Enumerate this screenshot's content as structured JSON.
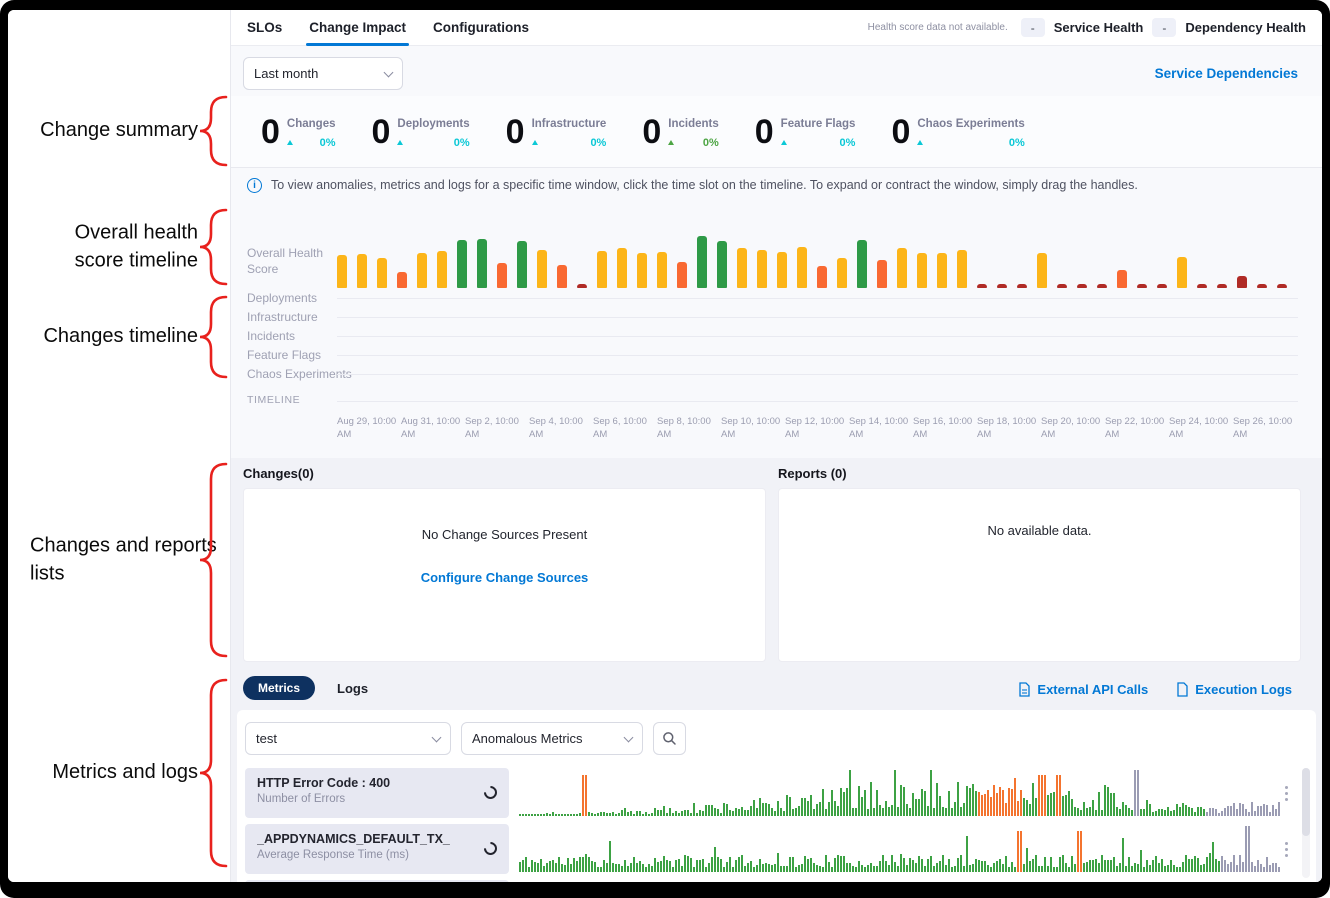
{
  "colors": {
    "accent_blue": "#0278d5",
    "cyan_delta": "#0bc8d6",
    "green_delta": "#4da544",
    "pill_navy": "#0e3160",
    "annotation_red": "#e8211d",
    "bar_yellow": "#fcb519",
    "bar_orange": "#f96932",
    "bar_green": "#2e9a47",
    "bar_red": "#b02b26",
    "spark_green": "#3da244",
    "spark_orange": "#f4742f",
    "spark_gray": "#9b9cb3"
  },
  "annotations": {
    "items": [
      {
        "lines": [
          "Change summary"
        ],
        "align": "right"
      },
      {
        "lines": [
          "Overall health",
          "score timeline"
        ],
        "align": "right"
      },
      {
        "lines": [
          "Changes timeline"
        ],
        "align": "right"
      },
      {
        "lines": [
          "Changes and reports",
          "lists"
        ],
        "align": "left"
      },
      {
        "lines": [
          "Metrics and logs"
        ],
        "align": "right"
      }
    ]
  },
  "tabs": {
    "items": [
      {
        "label": "SLOs",
        "active": false
      },
      {
        "label": "Change Impact",
        "active": true
      },
      {
        "label": "Configurations",
        "active": false
      }
    ]
  },
  "health_status": {
    "note": "Health score data not available.",
    "service": {
      "value": "-",
      "label": "Service Health"
    },
    "dependency": {
      "value": "-",
      "label": "Dependency Health"
    }
  },
  "toolbar": {
    "time_range_value": "Last month",
    "service_dependencies": "Service Dependencies"
  },
  "change_summary": {
    "items": [
      {
        "count": "0",
        "label": "Changes",
        "pct": "0%",
        "color": "#0bc8d6"
      },
      {
        "count": "0",
        "label": "Deployments",
        "pct": "0%",
        "color": "#0bc8d6"
      },
      {
        "count": "0",
        "label": "Infrastructure",
        "pct": "0%",
        "color": "#0bc8d6"
      },
      {
        "count": "0",
        "label": "Incidents",
        "pct": "0%",
        "color": "#4da544"
      },
      {
        "count": "0",
        "label": "Feature Flags",
        "pct": "0%",
        "color": "#0bc8d6"
      },
      {
        "count": "0",
        "label": "Chaos Experiments",
        "pct": "0%",
        "color": "#0bc8d6"
      }
    ]
  },
  "info_banner": {
    "text": "To view anomalies, metrics and logs for a specific time window, click the time slot on the timeline. To expand or contract the window, simply drag the handles."
  },
  "timeline_section": {
    "overall_label_lines": [
      "Overall Health",
      "Score"
    ],
    "category_rows": [
      "Deployments",
      "Infrastructure",
      "Incidents",
      "Feature Flags",
      "Chaos Experiments"
    ],
    "timeline_label": "TIMELINE",
    "dates": [
      {
        "date": "Aug 29, 10:00",
        "suffix": "AM"
      },
      {
        "date": "Aug 31, 10:00",
        "suffix": "AM"
      },
      {
        "date": "Sep 2, 10:00",
        "suffix": "AM"
      },
      {
        "date": "Sep 4, 10:00",
        "suffix": "AM"
      },
      {
        "date": "Sep 6, 10:00",
        "suffix": "AM"
      },
      {
        "date": "Sep 8, 10:00",
        "suffix": "AM"
      },
      {
        "date": "Sep 10, 10:00",
        "suffix": "AM"
      },
      {
        "date": "Sep 12, 10:00",
        "suffix": "AM"
      },
      {
        "date": "Sep 14, 10:00",
        "suffix": "AM"
      },
      {
        "date": "Sep 16, 10:00",
        "suffix": "AM"
      },
      {
        "date": "Sep 18, 10:00",
        "suffix": "AM"
      },
      {
        "date": "Sep 20, 10:00",
        "suffix": "AM"
      },
      {
        "date": "Sep 22, 10:00",
        "suffix": "AM"
      },
      {
        "date": "Sep 24, 10:00",
        "suffix": "AM"
      },
      {
        "date": "Sep 26, 10:00",
        "suffix": "AM"
      }
    ]
  },
  "changes_panel": {
    "title": "Changes(0)",
    "empty_text": "No Change Sources Present",
    "link": "Configure Change Sources"
  },
  "reports_panel": {
    "title": "Reports (0)",
    "empty_text": "No available data."
  },
  "metrics_section": {
    "tabs": [
      {
        "label": "Metrics",
        "active": true
      },
      {
        "label": "Logs",
        "active": false
      }
    ],
    "links": [
      {
        "label": "External API Calls"
      },
      {
        "label": "Execution Logs"
      }
    ],
    "filters": {
      "service_value": "test",
      "metric_filter_value": "Anomalous Metrics"
    },
    "rows": [
      {
        "title": "HTTP Error Code : 400",
        "subtitle": "Number of Errors"
      },
      {
        "title": "_APPDYNAMICS_DEFAULT_TX_",
        "subtitle": "Average Response Time (ms)"
      }
    ]
  },
  "chart_data": [
    {
      "id": "overall_health_score_timeline",
      "type": "bar",
      "title": "Overall Health Score",
      "ylim": [
        0,
        100
      ],
      "x_range": [
        "Aug 29, 10:00 AM",
        "Sep 26, 10:00 AM"
      ],
      "palette": {
        "y": "#fcb519",
        "o": "#f96932",
        "g": "#2e9a47",
        "r": "#b02b26"
      },
      "bars": [
        [
          "y",
          55
        ],
        [
          "y",
          57
        ],
        [
          "y",
          50
        ],
        [
          "o",
          26
        ],
        [
          "y",
          58
        ],
        [
          "y",
          62
        ],
        [
          "g",
          80
        ],
        [
          "g",
          82
        ],
        [
          "o",
          42
        ],
        [
          "g",
          78
        ],
        [
          "y",
          64
        ],
        [
          "o",
          38
        ],
        [
          "r",
          6
        ],
        [
          "y",
          62
        ],
        [
          "y",
          66
        ],
        [
          "y",
          58
        ],
        [
          "y",
          60
        ],
        [
          "o",
          44
        ],
        [
          "g",
          86
        ],
        [
          "g",
          79
        ],
        [
          "y",
          66
        ],
        [
          "y",
          64
        ],
        [
          "y",
          60
        ],
        [
          "y",
          68
        ],
        [
          "o",
          36
        ],
        [
          "y",
          50
        ],
        [
          "g",
          80
        ],
        [
          "o",
          46
        ],
        [
          "y",
          66
        ],
        [
          "y",
          58
        ],
        [
          "y",
          58
        ],
        [
          "y",
          64
        ],
        [
          "r",
          6
        ],
        [
          "r",
          6
        ],
        [
          "r",
          6
        ],
        [
          "y",
          58
        ],
        [
          "r",
          6
        ],
        [
          "r",
          6
        ],
        [
          "r",
          6
        ],
        [
          "o",
          30
        ],
        [
          "r",
          6
        ],
        [
          "r",
          6
        ],
        [
          "y",
          52
        ],
        [
          "r",
          6
        ],
        [
          "r",
          6
        ],
        [
          "r",
          20
        ],
        [
          "r",
          6
        ],
        [
          "r",
          6
        ]
      ]
    },
    {
      "id": "sparkline_http_error_400",
      "type": "bar",
      "series": "HTTP Error Code : 400",
      "bar_count": 254,
      "profile": {
        "envelope": "mid-heavy",
        "orange_region": [
          0.6,
          0.66
        ],
        "orange_spikes": [
          0.085,
          0.685,
          0.705
        ],
        "gray_from": 0.9,
        "gray_spikes": [
          0.81
        ],
        "seed": 7
      }
    },
    {
      "id": "sparkline_appdynamics_default_tx",
      "type": "bar",
      "series": "_APPDYNAMICS_DEFAULT_TX_",
      "bar_count": 254,
      "profile": {
        "envelope": "uniform-low",
        "orange_spikes": [
          0.655,
          0.735
        ],
        "gray_from": 0.92,
        "gray_spikes": [
          0.955
        ],
        "seed": 11
      }
    }
  ]
}
